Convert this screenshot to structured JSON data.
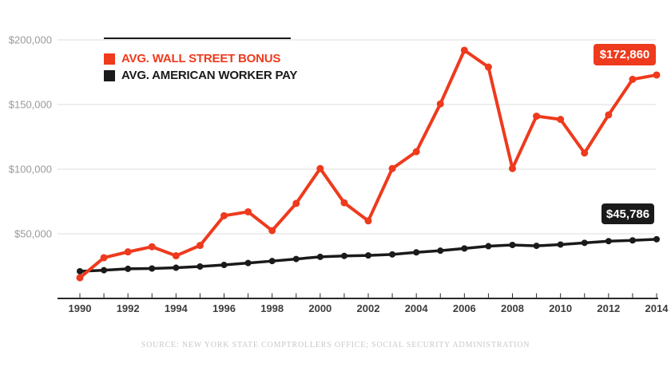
{
  "chart_data": {
    "type": "line",
    "x": [
      1990,
      1991,
      1992,
      1993,
      1994,
      1995,
      1996,
      1997,
      1998,
      1999,
      2000,
      2001,
      2002,
      2003,
      2004,
      2005,
      2006,
      2007,
      2008,
      2009,
      2010,
      2011,
      2012,
      2013,
      2014
    ],
    "series": [
      {
        "name": "AVG. WALL STREET BONUS",
        "color": "#ee3a1d",
        "values": [
          16000,
          31500,
          36000,
          40000,
          33000,
          41000,
          64000,
          67000,
          52500,
          73500,
          100500,
          74000,
          60000,
          100500,
          113500,
          150500,
          192000,
          179000,
          100500,
          141000,
          138500,
          112500,
          142000,
          169500,
          172860
        ]
      },
      {
        "name": "AVG. AMERICAN WORKER PAY",
        "color": "#1a1a1a",
        "values": [
          21000,
          21800,
          22900,
          23150,
          23750,
          24700,
          25900,
          27400,
          28900,
          30500,
          32150,
          32900,
          33250,
          34050,
          35650,
          36950,
          38650,
          40400,
          41350,
          40700,
          41700,
          43000,
          44300,
          44900,
          45786
        ]
      }
    ],
    "y_ticks": [
      50000,
      100000,
      150000,
      200000
    ],
    "y_tick_labels": [
      "$50,000",
      "$100,000",
      "$150,000",
      "$200,000"
    ],
    "x_tick_labels_shown": [
      "1990",
      "1992",
      "1994",
      "1996",
      "1998",
      "2000",
      "2002",
      "2004",
      "2006",
      "2008",
      "2010",
      "2012",
      "2014"
    ],
    "ylim": [
      0,
      215000
    ],
    "xlim": [
      1990,
      2014
    ],
    "grid": "horizontal",
    "legend_position": "top-left",
    "source": "SOURCE: NEW YORK STATE COMPTROLLERS OFFICE; SOCIAL SECURITY ADMINISTRATION"
  },
  "legend": {
    "bonus_label": "AVG. WALL STREET BONUS",
    "worker_label": "AVG. AMERICAN WORKER PAY"
  },
  "badges": {
    "bonus_value": "$172,860",
    "worker_value": "$45,786"
  },
  "colors": {
    "bonus": "#ee3a1d",
    "worker": "#1a1a1a",
    "grid": "#dddddd",
    "axis": "#2b2b2b",
    "y_label": "#9a9a9a",
    "x_label": "#3d3d3d",
    "source": "#c9c9c9",
    "background": "#ffffff",
    "badge_text": "#ffffff"
  }
}
